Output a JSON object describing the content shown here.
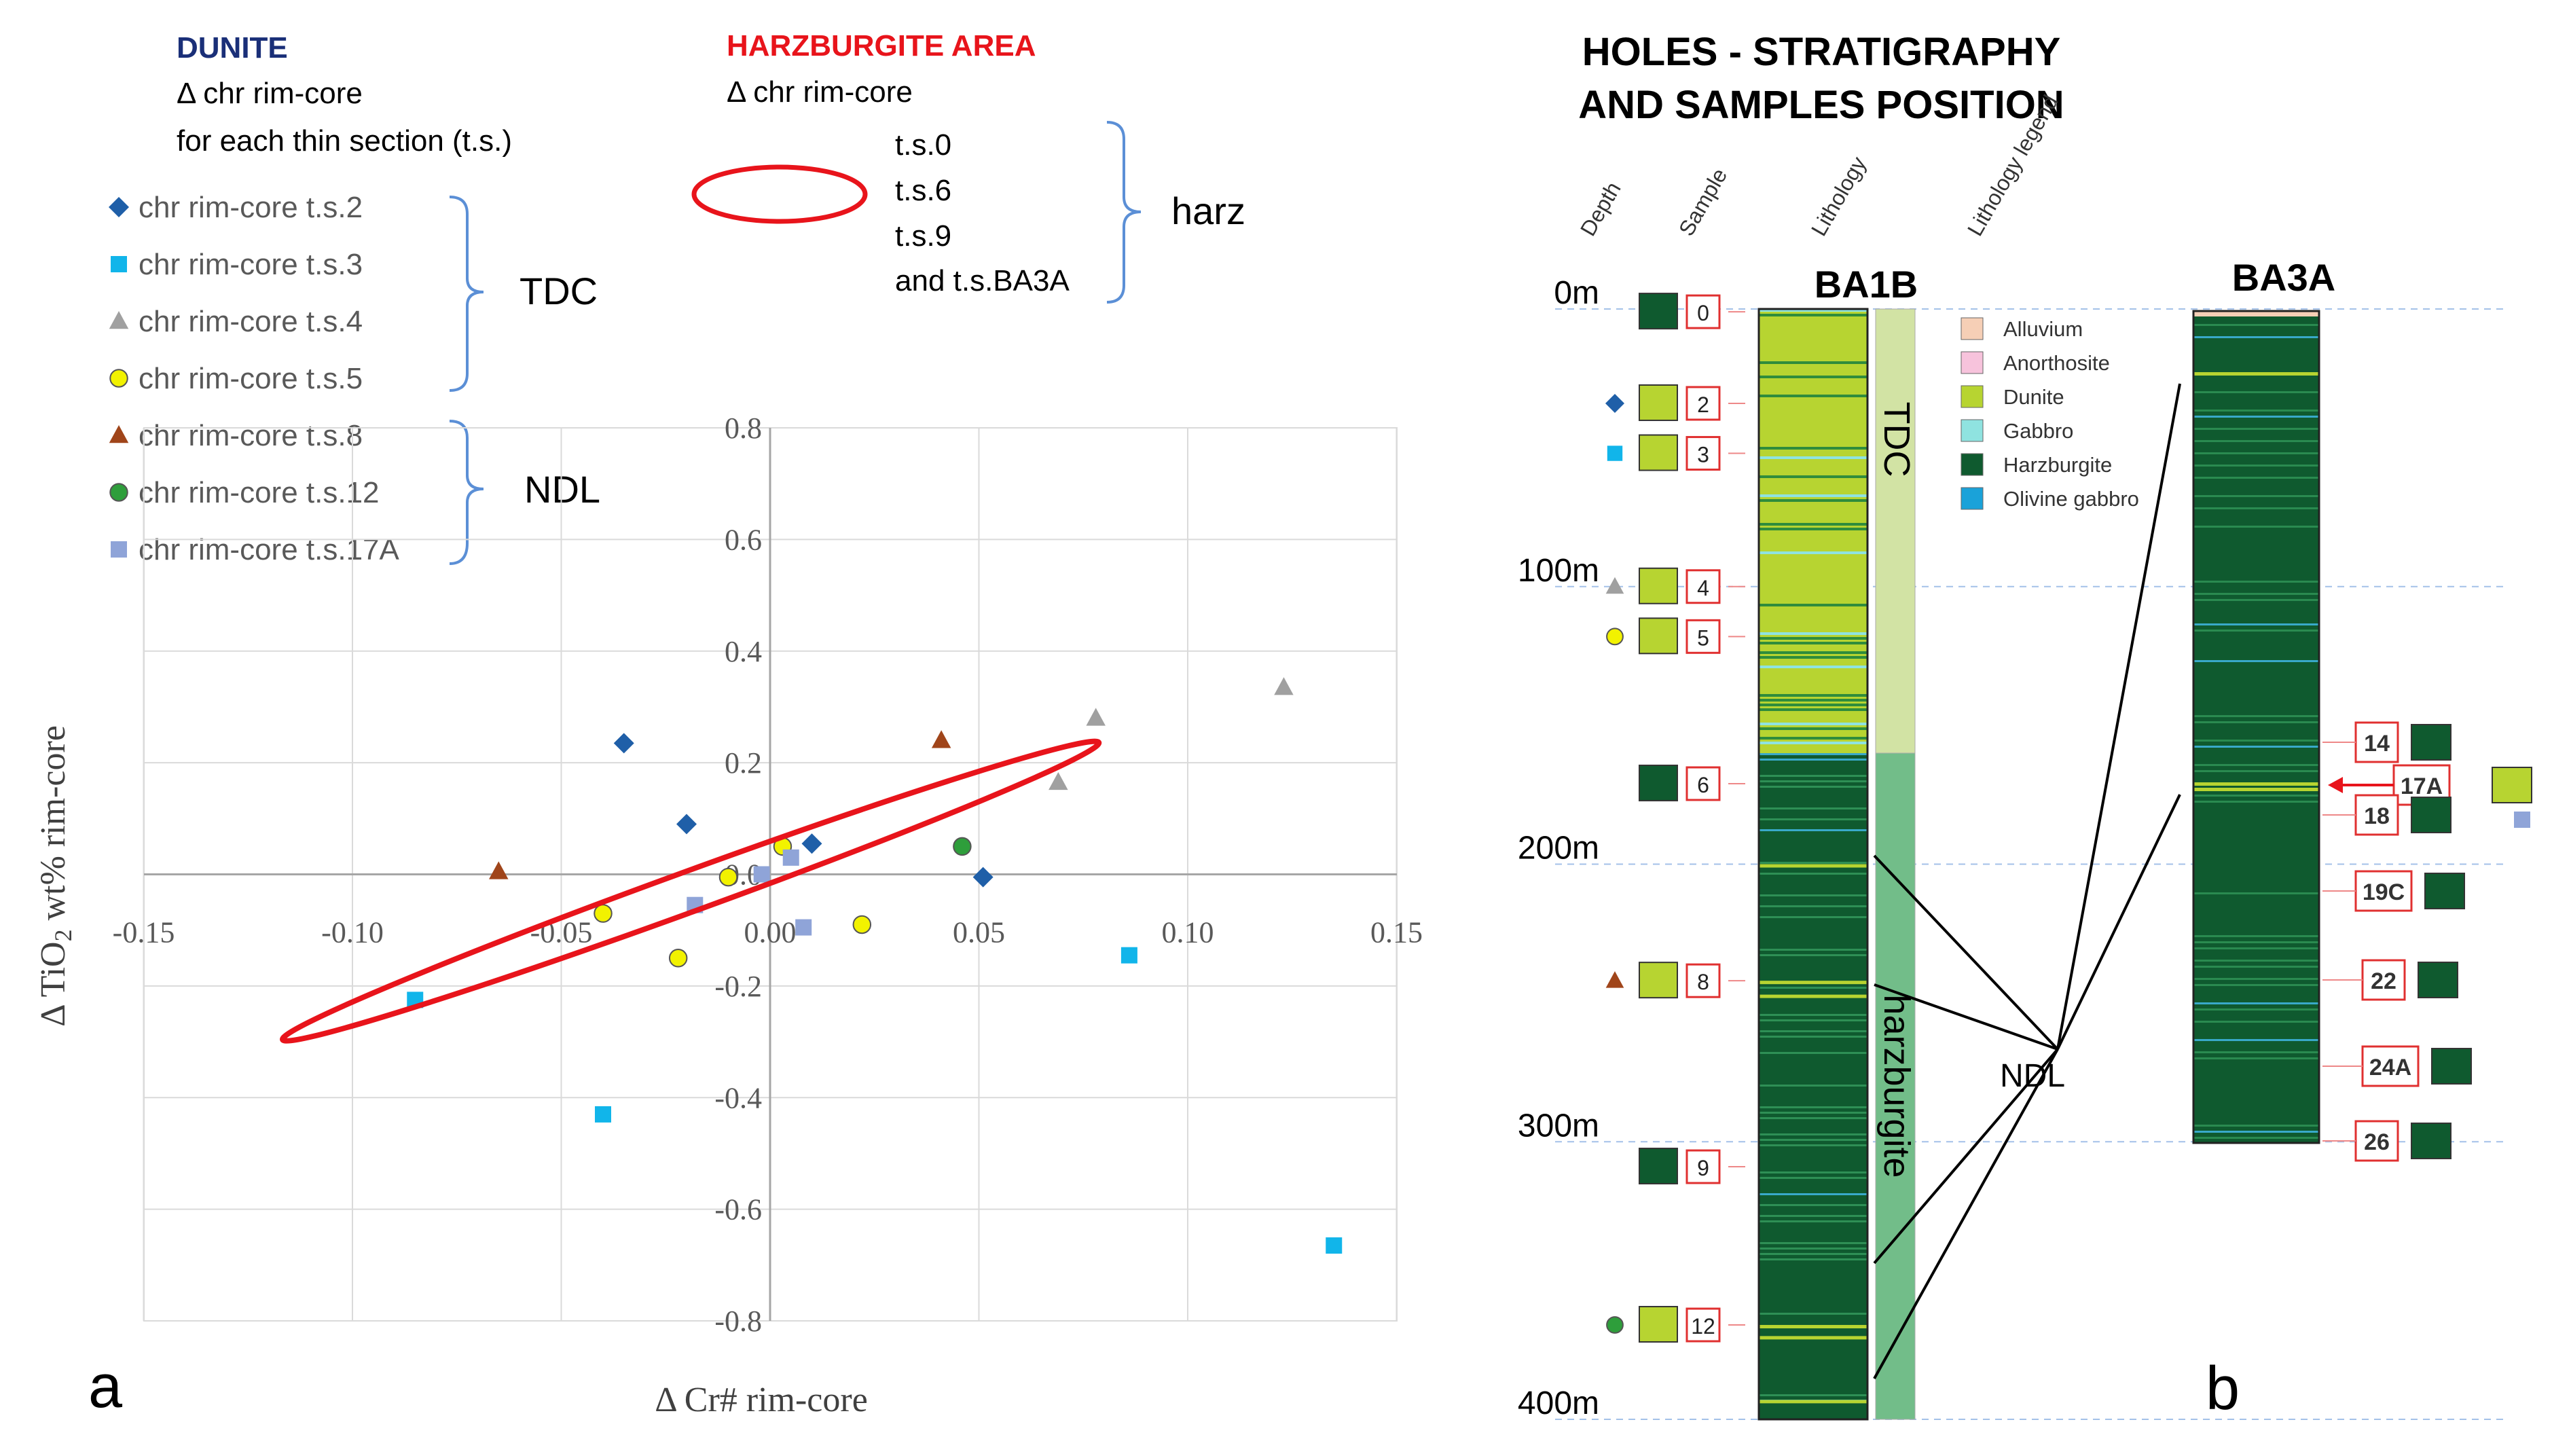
{
  "panel_a": {
    "panel_label": "a",
    "dunite": {
      "title": "DUNITE",
      "line1": "Δ chr rim-core",
      "line2": "for each thin section (t.s.)"
    },
    "harz_area": {
      "title": "HARZBURGITE AREA",
      "line1": "Δ chr rim-core",
      "sections": [
        "t.s.0",
        "t.s.6",
        "t.s.9",
        "and t.s.BA3A"
      ],
      "group": "harz"
    },
    "legend_groups": [
      {
        "label": "TDC"
      },
      {
        "label": "NDL"
      }
    ],
    "colors": {
      "ts2": "#1f5fa8",
      "ts3": "#11b5ea",
      "ts4": "#a0a0a0",
      "ts5": "#f2f200",
      "ts8": "#a0451a",
      "ts12": "#2e9e3b",
      "ts17A": "#8fa4d8",
      "ellipse": "#e8141b"
    }
  },
  "chart_data": {
    "type": "scatter",
    "xlabel": "Δ Cr# rim-core",
    "ylabel": "Δ TiO2 wt% rim-core",
    "xlim": [
      -0.15,
      0.15
    ],
    "ylim": [
      -0.8,
      0.8
    ],
    "x_ticks": [
      "-0.15",
      "-0.10",
      "-0.05",
      "0.00",
      "0.05",
      "0.10",
      "0.15"
    ],
    "y_ticks": [
      "0.8",
      "0.6",
      "0.4",
      "0.2",
      "0.0",
      "-0.2",
      "-0.4",
      "-0.6",
      "-0.8"
    ],
    "grid": true,
    "series": [
      {
        "name": "chr rim-core t.s.2",
        "marker": "diamond",
        "color": "#1f5fa8",
        "points": [
          [
            -0.035,
            0.235
          ],
          [
            -0.02,
            0.09
          ],
          [
            0.01,
            0.055
          ],
          [
            0.051,
            -0.005
          ]
        ]
      },
      {
        "name": "chr rim-core t.s.3",
        "marker": "square",
        "color": "#11b5ea",
        "points": [
          [
            -0.085,
            -0.225
          ],
          [
            -0.04,
            -0.43
          ],
          [
            0.086,
            -0.145
          ],
          [
            0.135,
            -0.665
          ]
        ]
      },
      {
        "name": "chr rim-core t.s.4",
        "marker": "triangle",
        "color": "#a0a0a0",
        "points": [
          [
            0.069,
            0.165
          ],
          [
            0.078,
            0.28
          ],
          [
            0.123,
            0.335
          ]
        ]
      },
      {
        "name": "chr rim-core t.s.5",
        "marker": "circle",
        "color": "#f2f200",
        "points": [
          [
            -0.04,
            -0.07
          ],
          [
            -0.022,
            -0.15
          ],
          [
            -0.01,
            -0.005
          ],
          [
            0.003,
            0.05
          ],
          [
            0.022,
            -0.09
          ]
        ]
      },
      {
        "name": "chr rim-core t.s.8",
        "marker": "triangle",
        "color": "#a0451a",
        "points": [
          [
            -0.065,
            0.005
          ],
          [
            0.041,
            0.24
          ]
        ]
      },
      {
        "name": "chr rim-core t.s.12",
        "marker": "circle",
        "color": "#2e9e3b",
        "points": [
          [
            0.046,
            0.05
          ]
        ]
      },
      {
        "name": "chr rim-core t.s.17A",
        "marker": "square",
        "color": "#8fa4d8",
        "points": [
          [
            -0.018,
            -0.055
          ],
          [
            -0.002,
            0.0
          ],
          [
            0.005,
            0.03
          ],
          [
            0.008,
            -0.095
          ]
        ]
      }
    ],
    "annotation": {
      "shape": "ellipse",
      "cx": -0.019,
      "cy": -0.03,
      "rx": 0.104,
      "ry": 0.036,
      "angle_deg": -20,
      "label": "harzburgite area"
    }
  },
  "panel_b": {
    "panel_label": "b",
    "title_line1": "HOLES  - STRATIGRAPHY",
    "title_line2": "AND SAMPLES POSITION",
    "col_headers": [
      "Depth",
      "Sample",
      "Lithology",
      "Lithology legend"
    ],
    "depth_labels": [
      {
        "label": "0m",
        "depth": 0
      },
      {
        "label": "100m",
        "depth": 100
      },
      {
        "label": "200m",
        "depth": 200
      },
      {
        "label": "300m",
        "depth": 300
      },
      {
        "label": "400m",
        "depth": 400
      }
    ],
    "ba1b": {
      "name": "BA1B",
      "units": [
        {
          "label": "TDC",
          "from": 0,
          "to": 160,
          "color": "#d2e3a4"
        },
        {
          "label": "harzburgite",
          "from": 160,
          "to": 400,
          "color": "#72bd89"
        }
      ]
    },
    "ba3a": {
      "name": "BA3A"
    },
    "lithology_legend": [
      {
        "label": "Alluvium",
        "color": "#f6cfb6"
      },
      {
        "label": "Anorthosite",
        "color": "#f7c3dc"
      },
      {
        "label": "Dunite",
        "color": "#b7d431"
      },
      {
        "label": "Gabbro",
        "color": "#8fe3e0"
      },
      {
        "label": "Harzburgite",
        "color": "#0f5a2f"
      },
      {
        "label": "Olivine gabbro",
        "color": "#1aa2d9"
      }
    ],
    "ba1b_samples": [
      {
        "label": "0",
        "lith": "harz",
        "marker": "",
        "depth": 1
      },
      {
        "label": "2",
        "lith": "dunite",
        "marker": "diamond",
        "depth": 34
      },
      {
        "label": "3",
        "lith": "dunite",
        "marker": "square",
        "depth": 52
      },
      {
        "label": "4",
        "lith": "dunite",
        "marker": "triangle",
        "depth": 100
      },
      {
        "label": "5",
        "lith": "dunite",
        "marker": "circle",
        "depth": 118
      },
      {
        "label": "6",
        "lith": "harz",
        "marker": "",
        "depth": 171
      },
      {
        "label": "8",
        "lith": "dunite",
        "marker": "triangle-brown",
        "depth": 242
      },
      {
        "label": "9",
        "lith": "harz",
        "marker": "",
        "depth": 309
      },
      {
        "label": "12",
        "lith": "dunite",
        "marker": "circle-green",
        "depth": 366
      }
    ],
    "ba3a_samples": [
      {
        "label": "14",
        "lith": "harz"
      },
      {
        "label": "17A",
        "lith": "dunite"
      },
      {
        "label": "18",
        "lith": "harz"
      },
      {
        "label": "19C",
        "lith": "harz"
      },
      {
        "label": "22",
        "lith": "harz"
      },
      {
        "label": "24A",
        "lith": "harz"
      },
      {
        "label": "26",
        "lith": "harz"
      }
    ],
    "ndl_label": "NDL"
  }
}
